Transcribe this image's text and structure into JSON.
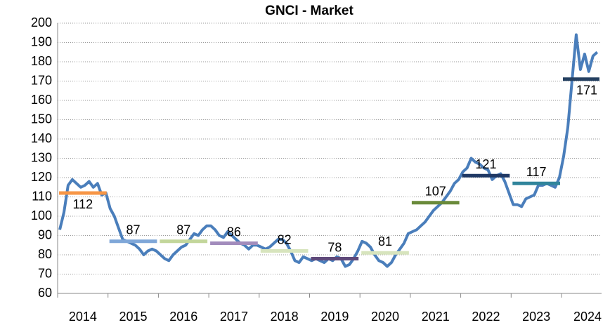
{
  "chart_data": {
    "type": "line",
    "title": "GNCI - Market",
    "categories": [
      "2014",
      "2015",
      "2016",
      "2017",
      "2018",
      "2019",
      "2020",
      "2021",
      "2022",
      "2023",
      "2024"
    ],
    "ylim": [
      60,
      200
    ],
    "yticks": [
      60,
      70,
      80,
      90,
      100,
      110,
      120,
      130,
      140,
      150,
      160,
      170,
      180,
      190,
      200
    ],
    "grid": true,
    "line": {
      "color": "#4a7ebb",
      "values": [
        93,
        102,
        116,
        119,
        117,
        115,
        116,
        118,
        115,
        117,
        111,
        112,
        104,
        100,
        94,
        88,
        87,
        86,
        85,
        83,
        80,
        82,
        83,
        82,
        80,
        78,
        77,
        80,
        82,
        84,
        85,
        88,
        91,
        90,
        93,
        95,
        95,
        93,
        90,
        89,
        92,
        90,
        88,
        86,
        85,
        83,
        85,
        85,
        84,
        83,
        84,
        86,
        88,
        88,
        86,
        82,
        77,
        76,
        79,
        78,
        77,
        78,
        77,
        76,
        78,
        77,
        79,
        78,
        74,
        75,
        78,
        82,
        87,
        86,
        84,
        80,
        77,
        76,
        74,
        76,
        80,
        83,
        86,
        91,
        92,
        93,
        95,
        97,
        100,
        103,
        105,
        107,
        110,
        113,
        117,
        119,
        123,
        125,
        130,
        128,
        127,
        125,
        124,
        119,
        121,
        122,
        118,
        112,
        106,
        106,
        105,
        109,
        110,
        111,
        116,
        116,
        117,
        116,
        115,
        120,
        131,
        146,
        170,
        194,
        176,
        184,
        175,
        183,
        185
      ]
    },
    "averages": {
      "values": [
        112,
        87,
        87,
        86,
        82,
        78,
        81,
        107,
        121,
        117,
        171
      ],
      "colors": [
        "#f79646",
        "#7fa7d8",
        "#c3d69b",
        "#a28cbc",
        "#d7e4bd",
        "#5f497a",
        "#d7e4bd",
        "#6a8a3a",
        "#1f3864",
        "#31859c",
        "#254061"
      ],
      "label_positions": [
        "below",
        "above",
        "above",
        "above",
        "above",
        "above",
        "above",
        "above",
        "above",
        "above",
        "below"
      ]
    }
  }
}
